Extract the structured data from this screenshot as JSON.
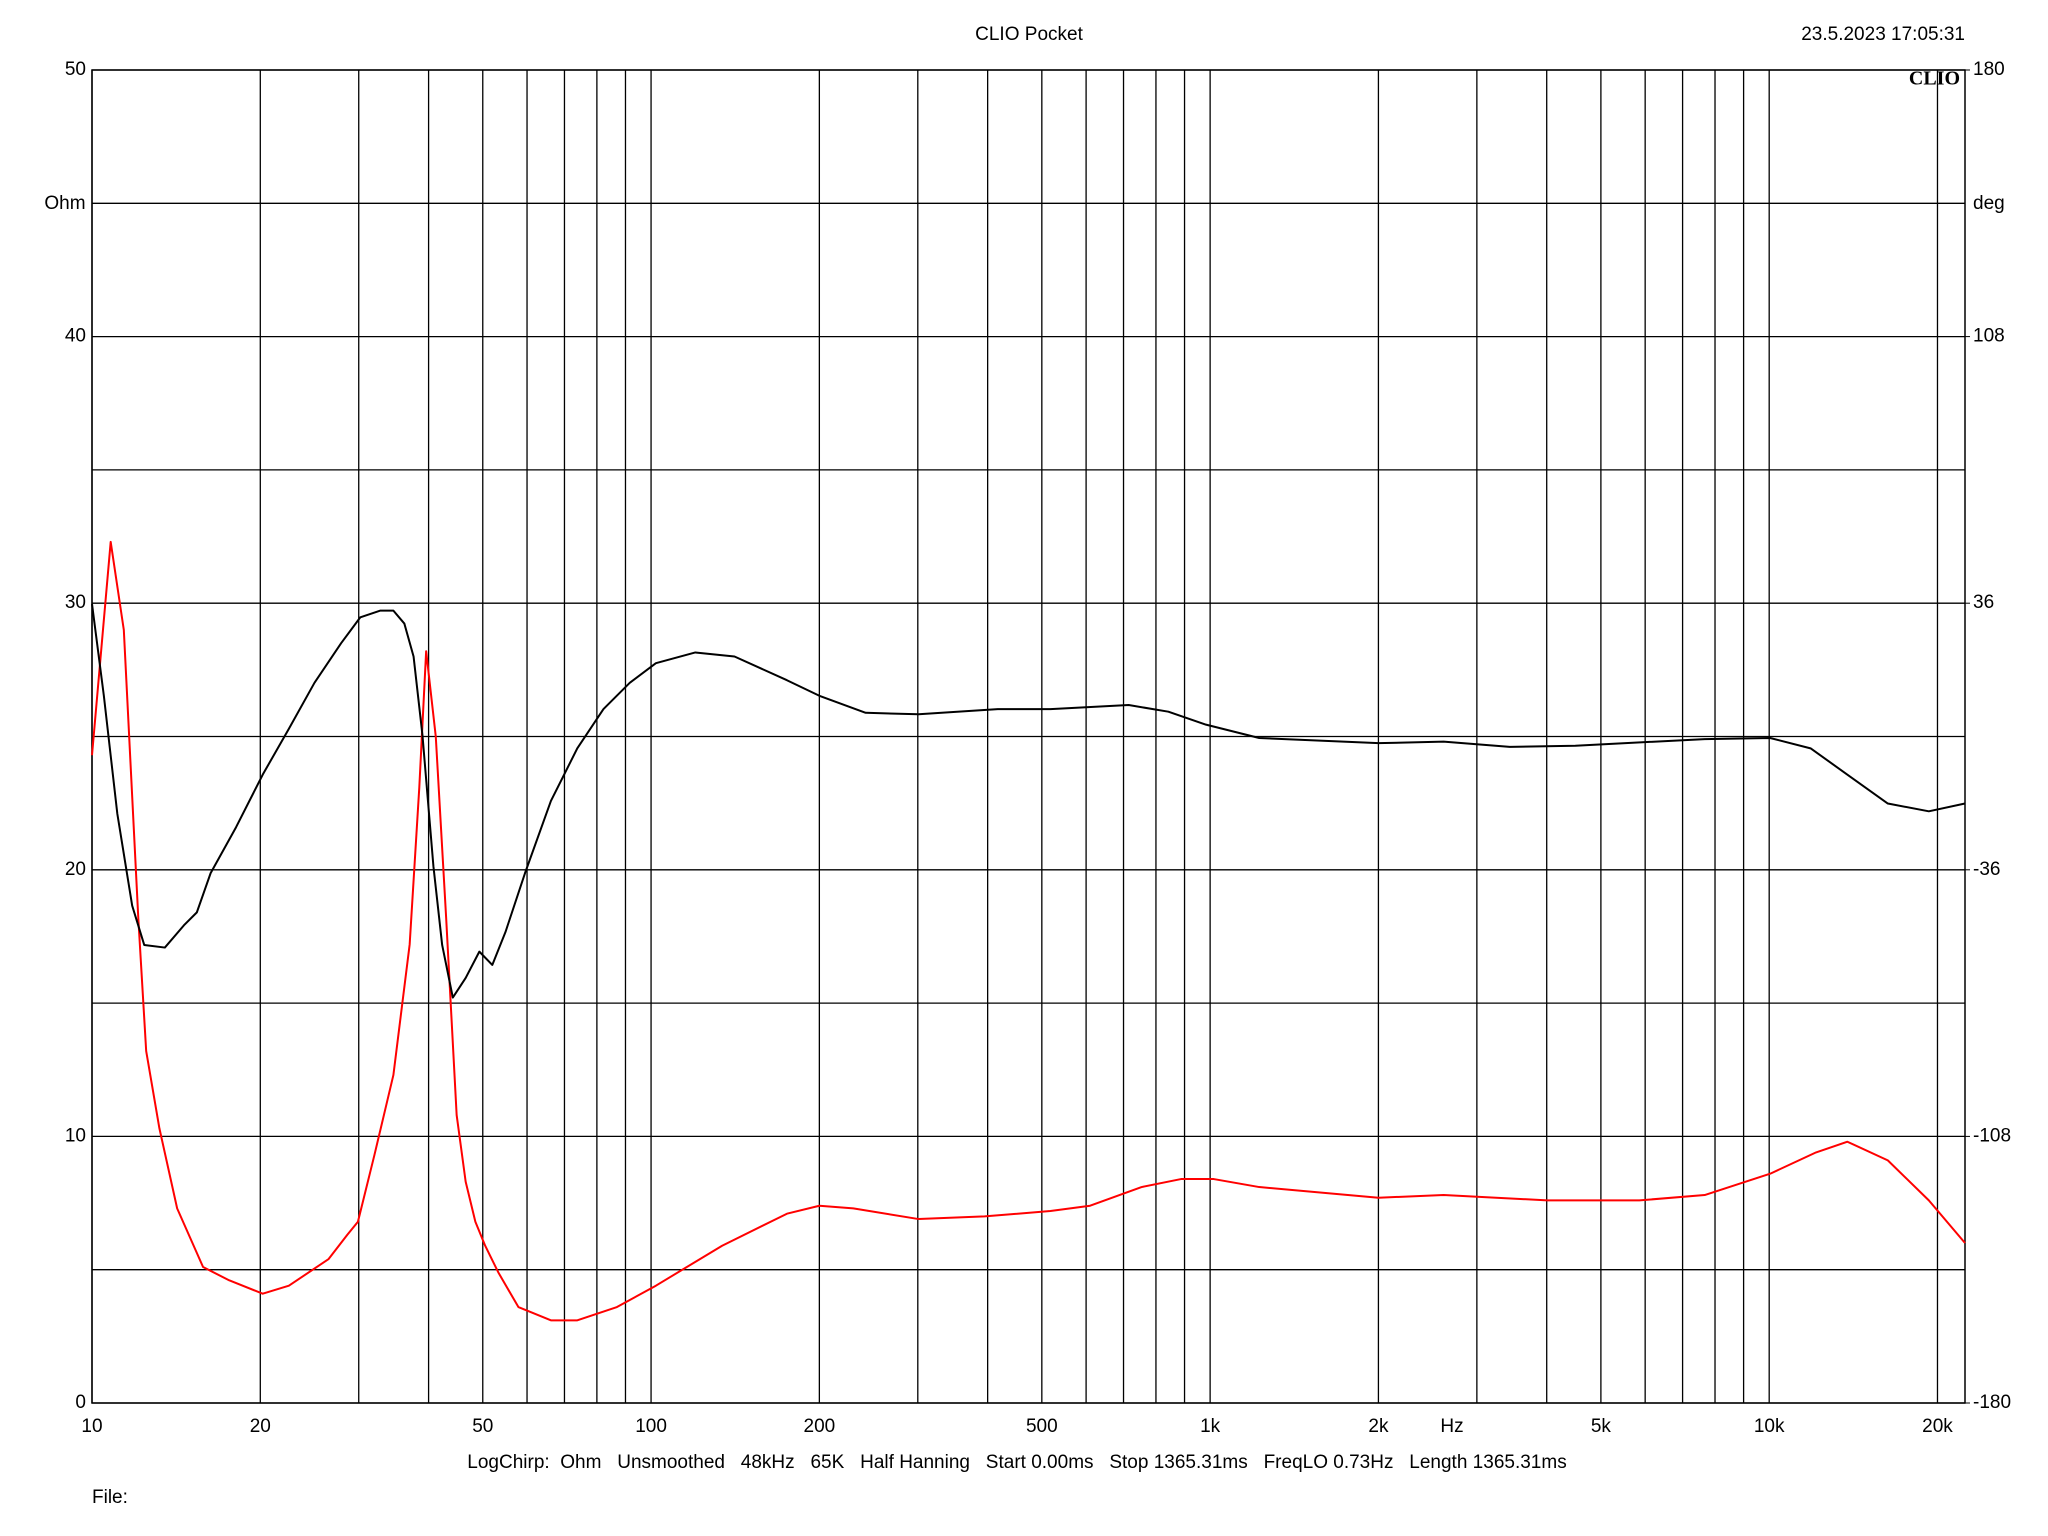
{
  "chart_data": {
    "type": "line",
    "title": "CLIO Pocket",
    "timestamp": "23.5.2023 17:05:31",
    "logo": "CLIO",
    "ylabel": "Ohm",
    "y2label": "deg",
    "xlabel": "Hz",
    "footer": "LogChirp:  Ohm   Unsmoothed   48kHz   65K   Half Hanning   Start 0.00ms   Stop 1365.31ms   FreqLO 0.73Hz   Length 1365.31ms",
    "file_label": "File:",
    "xscale": "log",
    "grid": true,
    "xlim": [
      10,
      22400
    ],
    "xticks": [
      10,
      20,
      50,
      100,
      200,
      500,
      {
        "value": 1000,
        "label": "1k"
      },
      {
        "value": 2000,
        "label": "2k"
      },
      {
        "value": 5000,
        "label": "5k"
      },
      {
        "value": 10000,
        "label": "10k"
      },
      {
        "value": 20000,
        "label": "20k"
      }
    ],
    "xminor": [
      30,
      40,
      60,
      70,
      80,
      90,
      300,
      400,
      600,
      700,
      800,
      900,
      3000,
      4000,
      6000,
      7000,
      8000,
      9000
    ],
    "ylim": [
      0,
      50
    ],
    "yticks": [
      0,
      10,
      20,
      30,
      40,
      50
    ],
    "yminor": [
      5,
      15,
      25,
      35,
      45
    ],
    "y2lim": [
      -180,
      180
    ],
    "y2ticks": [
      -180,
      -108,
      -36,
      36,
      108,
      180
    ],
    "series": [
      {
        "color": "#ff0000",
        "axis": "y",
        "x": [
          10,
          10.8,
          11.4,
          12.1,
          12.5,
          13.2,
          14.2,
          15.8,
          17.6,
          20.2,
          22.5,
          26.5,
          28.6,
          29.9,
          32.0,
          34.6,
          37.0,
          38.5,
          39.6,
          41.2,
          43.0,
          44.9,
          46.6,
          48.5,
          50.5,
          53.3,
          57.9,
          66.2,
          73.8,
          86.9,
          102,
          134,
          175,
          200,
          230,
          301,
          395,
          518,
          610,
          754,
          887,
          1015,
          1224,
          2000,
          2616,
          4010,
          5860,
          7668,
          10040,
          12130,
          13800,
          16300,
          19300,
          22400
        ],
        "values": [
          24.3,
          32.3,
          29.0,
          18.2,
          13.2,
          10.3,
          7.3,
          5.1,
          4.6,
          4.1,
          4.4,
          5.4,
          6.3,
          6.8,
          9.3,
          12.3,
          17.2,
          23.1,
          28.2,
          25.0,
          18.2,
          10.8,
          8.3,
          6.8,
          5.9,
          4.9,
          3.6,
          3.1,
          3.1,
          3.6,
          4.4,
          5.9,
          7.1,
          7.4,
          7.3,
          6.9,
          7.0,
          7.2,
          7.4,
          8.1,
          8.4,
          8.4,
          8.1,
          7.7,
          7.8,
          7.6,
          7.6,
          7.8,
          8.6,
          9.4,
          9.8,
          9.1,
          7.6,
          6.0
        ]
      },
      {
        "color": "#000000",
        "axis": "y2",
        "x": [
          10,
          10.5,
          11.1,
          11.8,
          12.4,
          13.5,
          14.6,
          15.4,
          16.3,
          18.1,
          20.2,
          22.5,
          25.0,
          27.9,
          30.2,
          32.8,
          34.6,
          36.2,
          37.6,
          39.0,
          40.8,
          42.3,
          44.2,
          46.6,
          49.3,
          52.0,
          54.9,
          59.5,
          66.2,
          73.8,
          82.2,
          91.6,
          102,
          120,
          141,
          175,
          200,
          242,
          301,
          417,
          518,
          715,
          842,
          983,
          1224,
          2000,
          2616,
          3436,
          4500,
          7668,
          10040,
          11860,
          13800,
          16300,
          19300,
          22400
        ],
        "values": [
          35.8,
          11,
          -20.9,
          -45.7,
          -56.3,
          -57,
          -51,
          -47.5,
          -36.9,
          -24.5,
          -10.3,
          2.1,
          14.5,
          25.2,
          32.2,
          34,
          34,
          30.5,
          21.6,
          0.4,
          -35,
          -56.3,
          -70.5,
          -65.2,
          -58.1,
          -61.7,
          -52.8,
          -36.9,
          -17.4,
          -3.2,
          7.4,
          14.5,
          19.8,
          22.7,
          21.6,
          15.2,
          11,
          6.4,
          6,
          7.4,
          7.4,
          8.5,
          6.7,
          3.2,
          -0.4,
          -1.8,
          -1.4,
          -2.8,
          -2.5,
          -0.7,
          -0.4,
          -3.2,
          -10.3,
          -18.1,
          -20.2,
          -18.1
        ]
      }
    ]
  }
}
